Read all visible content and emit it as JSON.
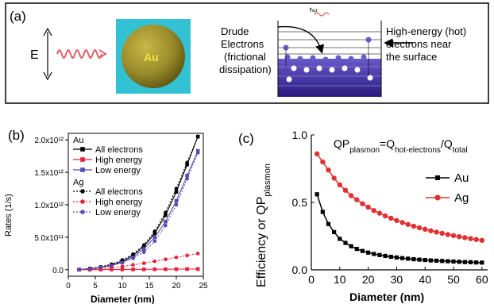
{
  "panel_a": {
    "label": "(a)",
    "field_label": "E",
    "sphere_label": "Au",
    "photon_label": "ħω",
    "drude_label": [
      "Drude",
      "Electrons",
      "(frictional",
      "dissipation)"
    ],
    "hot_label": [
      "High-energy (hot)",
      "electrons near",
      "the surface"
    ],
    "colors": {
      "sphere_bg": "#33c2d4",
      "sphere": "#9a8c2a",
      "band": "#3a2a9a",
      "wave": "#e0606a"
    }
  },
  "chart_data": [
    {
      "type": "line",
      "panel_label": "(b)",
      "xlabel": "Diameter (nm)",
      "ylabel": "Rates (1/s)",
      "xlim": [
        0,
        25
      ],
      "ylim": [
        -100000000000.0,
        2100000000000.0
      ],
      "xticks": [
        0,
        5,
        10,
        15,
        20,
        25
      ],
      "yticks": [
        0,
        500000000000.0,
        1000000000000.0,
        1500000000000.0,
        2000000000000.0
      ],
      "ytick_labels": [
        "0.0",
        "5.0x10¹¹",
        "1.0x10¹²",
        "1.5x10¹²",
        "2.0x10¹²"
      ],
      "x": [
        2,
        4,
        6,
        8,
        10,
        12,
        14,
        16,
        18,
        20,
        22,
        24
      ],
      "legend": {
        "placement": "top-left",
        "group1": "Au",
        "group2": "Ag"
      },
      "series": [
        {
          "name": "All electrons",
          "group": "Au",
          "marker": "square",
          "line": "solid",
          "color": "#000000",
          "values": [
            2000000000.0,
            15000000000.0,
            35000000000.0,
            70000000000.0,
            130000000000.0,
            220000000000.0,
            360000000000.0,
            560000000000.0,
            840000000000.0,
            1200000000000.0,
            1620000000000.0,
            2050000000000.0
          ]
        },
        {
          "name": "High energy",
          "group": "Au",
          "marker": "square",
          "line": "solid",
          "color": "#e8203a",
          "values": [
            0,
            1000000000.0,
            2000000000.0,
            3000000000.0,
            4000000000.0,
            5000000000.0,
            6000000000.0,
            7000000000.0,
            8000000000.0,
            9000000000.0,
            10000000000.0,
            11000000000.0
          ]
        },
        {
          "name": "Low energy",
          "group": "Au",
          "marker": "square",
          "line": "solid",
          "color": "#5a4ab0",
          "values": [
            2000000000.0,
            14000000000.0,
            32000000000.0,
            65000000000.0,
            115000000000.0,
            195000000000.0,
            320000000000.0,
            500000000000.0,
            740000000000.0,
            1060000000000.0,
            1450000000000.0,
            1830000000000.0
          ]
        },
        {
          "name": "All electrons",
          "group": "Ag",
          "marker": "circle",
          "line": "dotted",
          "color": "#000000",
          "values": [
            2000000000.0,
            20000000000.0,
            45000000000.0,
            85000000000.0,
            150000000000.0,
            240000000000.0,
            380000000000.0,
            590000000000.0,
            880000000000.0,
            1250000000000.0,
            1650000000000.0,
            2050000000000.0
          ]
        },
        {
          "name": "High energy",
          "group": "Ag",
          "marker": "circle",
          "line": "dotted",
          "color": "#e8203a",
          "values": [
            0,
            5000000000.0,
            15000000000.0,
            30000000000.0,
            50000000000.0,
            75000000000.0,
            100000000000.0,
            130000000000.0,
            160000000000.0,
            190000000000.0,
            220000000000.0,
            250000000000.0
          ]
        },
        {
          "name": "Low energy",
          "group": "Ag",
          "marker": "circle",
          "line": "dotted",
          "color": "#5a4ab0",
          "values": [
            2000000000.0,
            15000000000.0,
            35000000000.0,
            65000000000.0,
            110000000000.0,
            175000000000.0,
            270000000000.0,
            440000000000.0,
            680000000000.0,
            1000000000000.0,
            1400000000000.0,
            1800000000000.0
          ]
        }
      ]
    },
    {
      "type": "line",
      "panel_label": "(c)",
      "title": "QP_plasmon=Q_hot-electrons/Q_total",
      "xlabel": "Diameter (nm)",
      "ylabel": "Efficiency or QP_plasmon",
      "xlim": [
        0,
        62
      ],
      "ylim": [
        0,
        1.0
      ],
      "xticks": [
        0,
        10,
        20,
        30,
        40,
        50,
        60
      ],
      "yticks": [
        0.0,
        0.5,
        1.0
      ],
      "ytick_labels": [
        "0.0",
        "0.5",
        "1.0"
      ],
      "x": [
        2,
        4,
        6,
        8,
        10,
        12,
        14,
        16,
        18,
        20,
        22,
        24,
        26,
        28,
        30,
        32,
        34,
        36,
        38,
        40,
        42,
        44,
        46,
        48,
        50,
        52,
        54,
        56,
        58,
        60
      ],
      "legend": {
        "placement": "right"
      },
      "series": [
        {
          "name": "Au",
          "marker": "square",
          "color": "#000000",
          "values": [
            0.56,
            0.43,
            0.34,
            0.28,
            0.23,
            0.2,
            0.175,
            0.155,
            0.14,
            0.128,
            0.118,
            0.11,
            0.103,
            0.097,
            0.092,
            0.087,
            0.083,
            0.079,
            0.076,
            0.073,
            0.07,
            0.068,
            0.066,
            0.064,
            0.062,
            0.06,
            0.058,
            0.057,
            0.055,
            0.054
          ]
        },
        {
          "name": "Ag",
          "marker": "circle",
          "color": "#e03030",
          "values": [
            0.86,
            0.8,
            0.74,
            0.68,
            0.63,
            0.59,
            0.55,
            0.52,
            0.49,
            0.465,
            0.44,
            0.42,
            0.4,
            0.383,
            0.366,
            0.351,
            0.337,
            0.324,
            0.312,
            0.301,
            0.29,
            0.28,
            0.271,
            0.262,
            0.254,
            0.246,
            0.239,
            0.232,
            0.225,
            0.219
          ]
        }
      ]
    }
  ]
}
